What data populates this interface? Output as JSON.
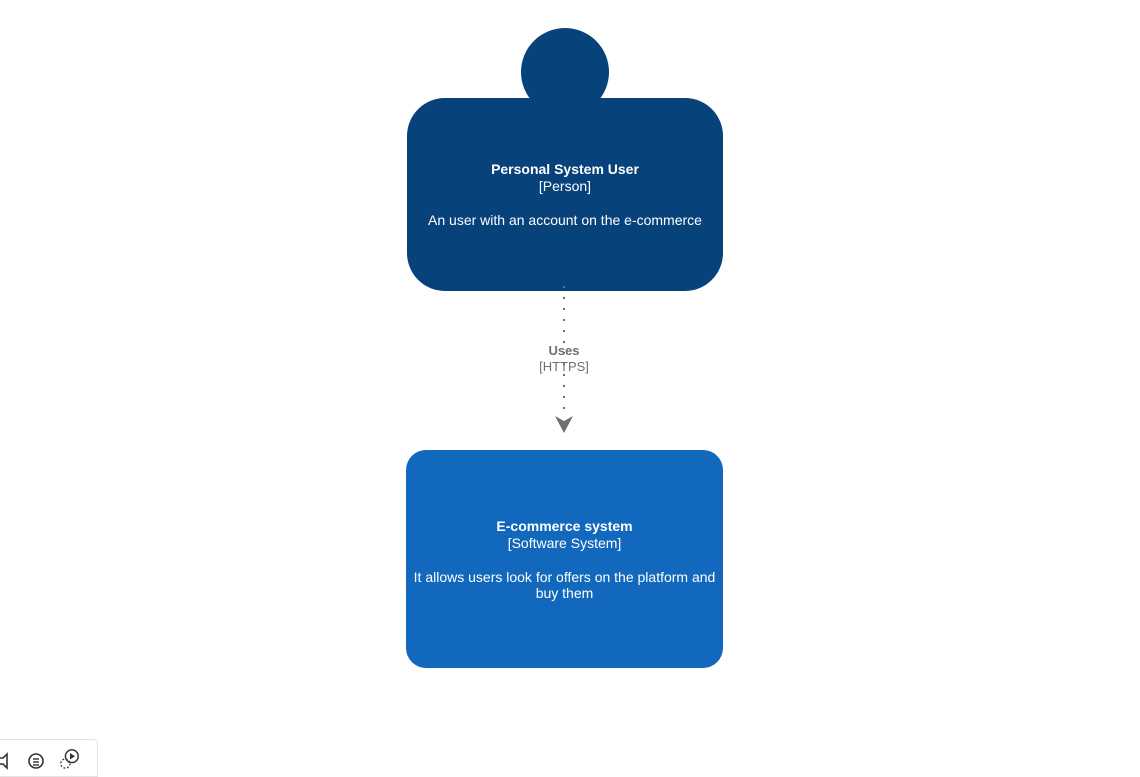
{
  "person": {
    "name": "Personal System User",
    "type": "[Person]",
    "description": "An user with an account on the e-commerce"
  },
  "system": {
    "name": "E-commerce system",
    "type": "[Software System]",
    "description": "It allows users look for offers on the platform and buy them"
  },
  "relationship": {
    "description": "Uses",
    "technology": "[HTTPS]"
  },
  "toolbar": {
    "icons": [
      "audio-icon",
      "comments-icon",
      "present-icon"
    ]
  },
  "colors": {
    "person": "#08427b",
    "system": "#1168bd",
    "relationship": "#707070"
  }
}
